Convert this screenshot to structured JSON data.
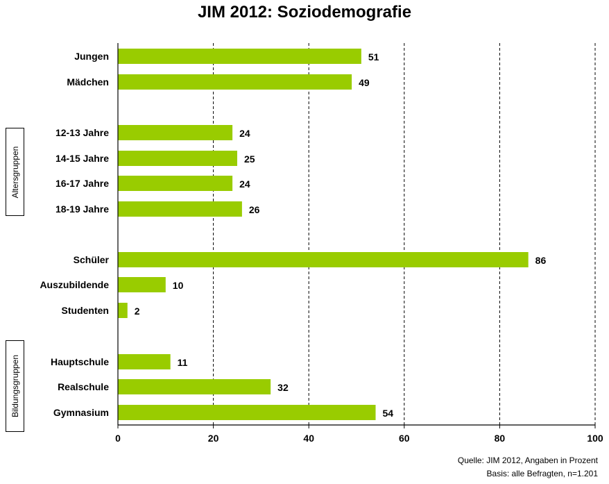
{
  "chart_data": {
    "type": "bar",
    "orientation": "horizontal",
    "title": "JIM 2012: Soziodemografie",
    "categories": [
      "Jungen",
      "Mädchen",
      "12-13 Jahre",
      "14-15 Jahre",
      "16-17 Jahre",
      "18-19 Jahre",
      "Schüler",
      "Auszubildende",
      "Studenten",
      "Hauptschule",
      "Realschule",
      "Gymnasium"
    ],
    "values": [
      51,
      49,
      24,
      25,
      24,
      26,
      86,
      10,
      2,
      11,
      32,
      54
    ],
    "xlim": [
      0,
      100
    ],
    "xticks": [
      "0",
      "20",
      "40",
      "60",
      "80",
      "100"
    ],
    "grid": "vertical dashed",
    "bar_color": "#99cc00",
    "groups": [
      {
        "label": "Altersgruppen"
      },
      {
        "label": "Bildungsgruppen"
      }
    ]
  },
  "footer": {
    "source_line1": "Quelle: JIM 2012, Angaben in Prozent",
    "source_line2": "Basis: alle Befragten, n=1.201"
  }
}
